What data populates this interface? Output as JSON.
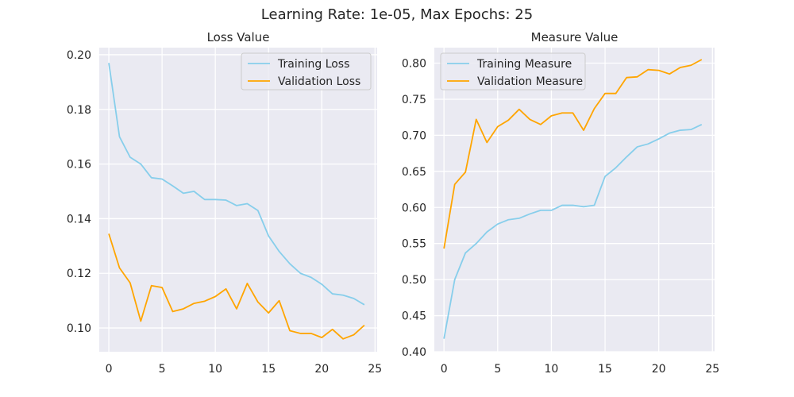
{
  "suptitle": "Learning Rate: 1e-05, Max Epochs: 25",
  "colors": {
    "training": "#87CEEB",
    "validation": "#FFA500",
    "panel_bg": "#EAEAF2",
    "grid": "#FFFFFF"
  },
  "chart_data": [
    {
      "type": "line",
      "title": "Loss Value",
      "xlabel": "",
      "ylabel": "",
      "x": [
        0,
        1,
        2,
        3,
        4,
        5,
        6,
        7,
        8,
        9,
        10,
        11,
        12,
        13,
        14,
        15,
        16,
        17,
        18,
        19,
        20,
        21,
        22,
        23,
        24
      ],
      "xlim": [
        -0.9,
        25.2
      ],
      "ylim": [
        0.0913,
        0.2026
      ],
      "xticks": [
        0,
        5,
        10,
        15,
        20,
        25
      ],
      "xtick_labels": [
        "0",
        "5",
        "10",
        "15",
        "20",
        "25"
      ],
      "yticks": [
        0.1,
        0.12,
        0.14,
        0.16,
        0.18,
        0.2
      ],
      "ytick_labels": [
        "0.10",
        "0.12",
        "0.14",
        "0.16",
        "0.18",
        "0.20"
      ],
      "legend_position": "upper-right",
      "series": [
        {
          "name": "Training Loss",
          "color": "#87CEEB",
          "values": [
            0.197,
            0.17,
            0.1625,
            0.16,
            0.155,
            0.1545,
            0.152,
            0.1493,
            0.15,
            0.147,
            0.147,
            0.1468,
            0.1448,
            0.1455,
            0.143,
            0.1337,
            0.128,
            0.1235,
            0.12,
            0.1185,
            0.116,
            0.1125,
            0.112,
            0.1108,
            0.1085
          ]
        },
        {
          "name": "Validation Loss",
          "color": "#FFA500",
          "values": [
            0.1345,
            0.122,
            0.1165,
            0.1025,
            0.1155,
            0.1148,
            0.106,
            0.107,
            0.109,
            0.1098,
            0.1115,
            0.1143,
            0.107,
            0.1163,
            0.1095,
            0.1055,
            0.11,
            0.099,
            0.098,
            0.098,
            0.0965,
            0.0995,
            0.096,
            0.0975,
            0.101
          ]
        }
      ]
    },
    {
      "type": "line",
      "title": "Measure Value",
      "xlabel": "",
      "ylabel": "",
      "x": [
        0,
        1,
        2,
        3,
        4,
        5,
        6,
        7,
        8,
        9,
        10,
        11,
        12,
        13,
        14,
        15,
        16,
        17,
        18,
        19,
        20,
        21,
        22,
        23,
        24
      ],
      "xlim": [
        -0.9,
        25.2
      ],
      "ylim": [
        0.4,
        0.8215
      ],
      "xticks": [
        0,
        5,
        10,
        15,
        20,
        25
      ],
      "xtick_labels": [
        "0",
        "5",
        "10",
        "15",
        "20",
        "25"
      ],
      "yticks": [
        0.4,
        0.45,
        0.5,
        0.55,
        0.6,
        0.65,
        0.7,
        0.75,
        0.8
      ],
      "ytick_labels": [
        "0.40",
        "0.45",
        "0.50",
        "0.55",
        "0.60",
        "0.65",
        "0.70",
        "0.75",
        "0.80"
      ],
      "legend_position": "upper-left",
      "series": [
        {
          "name": "Training Measure",
          "color": "#87CEEB",
          "values": [
            0.418,
            0.5,
            0.537,
            0.55,
            0.566,
            0.577,
            0.583,
            0.585,
            0.591,
            0.596,
            0.596,
            0.603,
            0.603,
            0.601,
            0.603,
            0.643,
            0.655,
            0.67,
            0.684,
            0.688,
            0.695,
            0.703,
            0.707,
            0.708,
            0.715
          ]
        },
        {
          "name": "Validation Measure",
          "color": "#FFA500",
          "values": [
            0.543,
            0.632,
            0.649,
            0.722,
            0.69,
            0.712,
            0.721,
            0.736,
            0.722,
            0.715,
            0.727,
            0.731,
            0.731,
            0.707,
            0.737,
            0.758,
            0.758,
            0.78,
            0.781,
            0.791,
            0.79,
            0.785,
            0.794,
            0.797,
            0.805
          ]
        }
      ]
    }
  ]
}
